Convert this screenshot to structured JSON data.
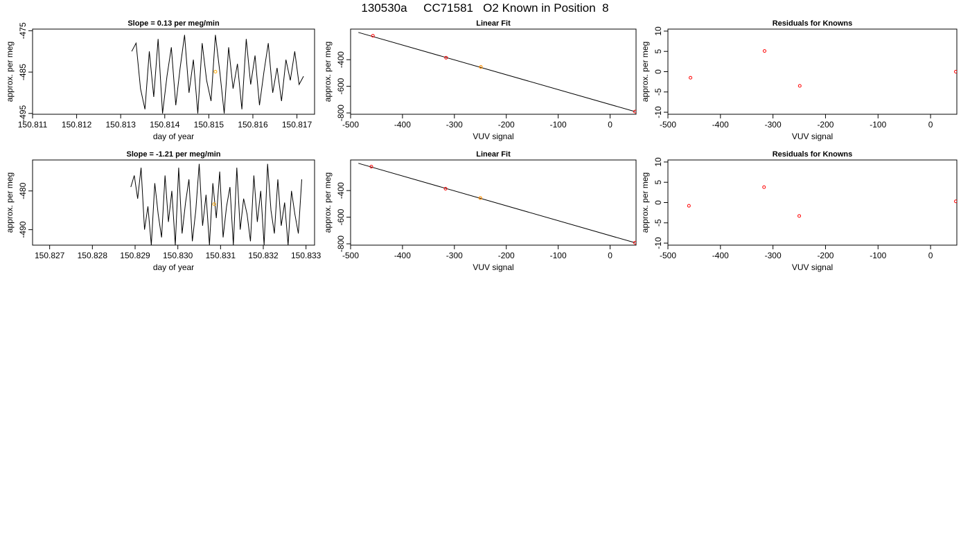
{
  "figure_title": "130530a     CC71581   O2 Known in Position  8",
  "chart_data": [
    {
      "type": "line",
      "title": "Slope =  0.13  per meg/min",
      "xlabel": "day of year",
      "ylabel": "approx. per meg",
      "xlim": [
        150.811,
        150.8174
      ],
      "ylim": [
        -495.2,
        -474.6
      ],
      "xticks": [
        "150.811",
        "150.812",
        "150.813",
        "150.814",
        "150.815",
        "150.816",
        "150.817"
      ],
      "yticks": [
        "-475",
        "-485",
        "-495"
      ],
      "highlight_point": {
        "x": 150.81515,
        "y": -484.9,
        "color": "#FFA500"
      },
      "line_color": "#000000",
      "series_color": "#BEBEBE",
      "series": [
        {
          "x": [
            150.81325,
            150.81335,
            150.81345,
            150.81355,
            150.81365,
            150.81375,
            150.81385,
            150.81395,
            150.81405,
            150.81415,
            150.81425,
            150.81435,
            150.81445,
            150.81455,
            150.81465,
            150.81475,
            150.81485,
            150.81495,
            150.81505,
            150.81515,
            150.81525,
            150.81535,
            150.81545,
            150.81555,
            150.81565,
            150.81575,
            150.81585,
            150.81595,
            150.81605,
            150.81615,
            150.81625,
            150.81635,
            150.81645,
            150.81655,
            150.81665,
            150.81675,
            150.81685,
            150.81695,
            150.81705,
            150.81715
          ],
          "y": [
            -480,
            -478,
            -489,
            -494,
            -480,
            -491,
            -477,
            -495,
            -486,
            -479,
            -493,
            -484,
            -476,
            -490,
            -482,
            -495,
            -478,
            -487,
            -492,
            -476,
            -485,
            -495,
            -479,
            -489,
            -483,
            -494,
            -477,
            -488,
            -481,
            -493,
            -485,
            -478,
            -490,
            -484,
            -492,
            -482,
            -487,
            -480,
            -488,
            -486
          ]
        }
      ]
    },
    {
      "type": "scatter",
      "title": "Linear Fit",
      "xlabel": "VUV signal",
      "ylabel": "approx. per meg",
      "xlim": [
        -500,
        50
      ],
      "ylim": [
        -810,
        -170
      ],
      "xticks": [
        "-500",
        "-400",
        "-300",
        "-200",
        "-100",
        "0"
      ],
      "yticks": [
        "-400",
        "-600",
        "-800"
      ],
      "points": [
        {
          "x": -457,
          "y": -220,
          "color": "#FF0000"
        },
        {
          "x": -316,
          "y": -385,
          "color": "#FF0000"
        },
        {
          "x": -249,
          "y": -455,
          "color": "#FF0000"
        },
        {
          "x": -249,
          "y": -455,
          "color": "#FFA500"
        },
        {
          "x": 48,
          "y": -790,
          "color": "#FF0000"
        }
      ],
      "fit_line": {
        "x": [
          -485,
          48
        ],
        "y": [
          -195,
          -790
        ]
      }
    },
    {
      "type": "scatter",
      "title": "Residuals for Knowns",
      "xlabel": "VUV signal",
      "ylabel": "approx. per meg",
      "xlim": [
        -500,
        50
      ],
      "ylim": [
        -10.5,
        10.5
      ],
      "xticks": [
        "-500",
        "-400",
        "-300",
        "-200",
        "-100",
        "0"
      ],
      "yticks": [
        "10",
        "5",
        "0",
        "-5",
        "-10"
      ],
      "points": [
        {
          "x": -457,
          "y": -1.5,
          "color": "#FF0000"
        },
        {
          "x": -316,
          "y": 5.1,
          "color": "#FF0000"
        },
        {
          "x": -249,
          "y": -3.5,
          "color": "#FF0000"
        },
        {
          "x": 48,
          "y": 0.0,
          "color": "#FF0000"
        }
      ]
    },
    {
      "type": "line",
      "title": "Slope =  -1.21  per meg/min",
      "xlabel": "day of year",
      "ylabel": "approx. per meg",
      "xlim": [
        150.8266,
        150.8332
      ],
      "ylim": [
        -494,
        -472
      ],
      "xticks": [
        "150.827",
        "150.828",
        "150.829",
        "150.830",
        "150.831",
        "150.832",
        "150.833"
      ],
      "yticks": [
        "-480",
        "-490"
      ],
      "highlight_point": {
        "x": 150.83085,
        "y": -483.4,
        "color": "#FFA500"
      },
      "line_color": "#000000",
      "series": [
        {
          "x": [
            150.8289,
            150.82898,
            150.82906,
            150.82914,
            150.82922,
            150.8293,
            150.82938,
            150.82946,
            150.82954,
            150.82962,
            150.8297,
            150.82978,
            150.82986,
            150.82994,
            150.83002,
            150.8301,
            150.83018,
            150.83026,
            150.83034,
            150.83042,
            150.8305,
            150.83058,
            150.83066,
            150.83074,
            150.83082,
            150.8309,
            150.83098,
            150.83106,
            150.83114,
            150.83122,
            150.8313,
            150.83138,
            150.83146,
            150.83154,
            150.83162,
            150.8317,
            150.83178,
            150.83186,
            150.83194,
            150.83202,
            150.8321,
            150.83218,
            150.83226,
            150.83234,
            150.83242,
            150.8325,
            150.83258,
            150.83266,
            150.83274,
            150.83282,
            150.8329
          ],
          "y": [
            -479,
            -476,
            -482,
            -474,
            -490,
            -484,
            -494,
            -478,
            -486,
            -492,
            -476,
            -488,
            -480,
            -494,
            -474,
            -491,
            -483,
            -477,
            -493,
            -485,
            -473,
            -489,
            -481,
            -494,
            -478,
            -487,
            -475,
            -492,
            -484,
            -479,
            -494,
            -474,
            -490,
            -482,
            -486,
            -493,
            -476,
            -488,
            -480,
            -494,
            -473,
            -485,
            -491,
            -477,
            -489,
            -483,
            -494,
            -480,
            -486,
            -491,
            -477
          ]
        }
      ]
    },
    {
      "type": "scatter",
      "title": "Linear Fit",
      "xlabel": "VUV signal",
      "ylabel": "approx. per meg",
      "xlim": [
        -500,
        50
      ],
      "ylim": [
        -810,
        -170
      ],
      "xticks": [
        "-500",
        "-400",
        "-300",
        "-200",
        "-100",
        "0"
      ],
      "yticks": [
        "-400",
        "-600",
        "-800"
      ],
      "points": [
        {
          "x": -460,
          "y": -220,
          "color": "#FF0000"
        },
        {
          "x": -317,
          "y": -386,
          "color": "#FF0000"
        },
        {
          "x": -250,
          "y": -456,
          "color": "#FF0000"
        },
        {
          "x": -250,
          "y": -456,
          "color": "#FFA500"
        },
        {
          "x": 48,
          "y": -792,
          "color": "#FF0000"
        }
      ],
      "fit_line": {
        "x": [
          -485,
          48
        ],
        "y": [
          -195,
          -792
        ]
      }
    },
    {
      "type": "scatter",
      "title": "Residuals for Knowns",
      "xlabel": "VUV signal",
      "ylabel": "approx. per meg",
      "xlim": [
        -500,
        50
      ],
      "ylim": [
        -10.5,
        10.5
      ],
      "xticks": [
        "-500",
        "-400",
        "-300",
        "-200",
        "-100",
        "0"
      ],
      "yticks": [
        "10",
        "5",
        "0",
        "-5",
        "-10"
      ],
      "points": [
        {
          "x": -460,
          "y": -0.8,
          "color": "#FF0000"
        },
        {
          "x": -317,
          "y": 3.8,
          "color": "#FF0000"
        },
        {
          "x": -250,
          "y": -3.3,
          "color": "#FF0000"
        },
        {
          "x": 48,
          "y": 0.3,
          "color": "#FF0000"
        }
      ]
    }
  ]
}
